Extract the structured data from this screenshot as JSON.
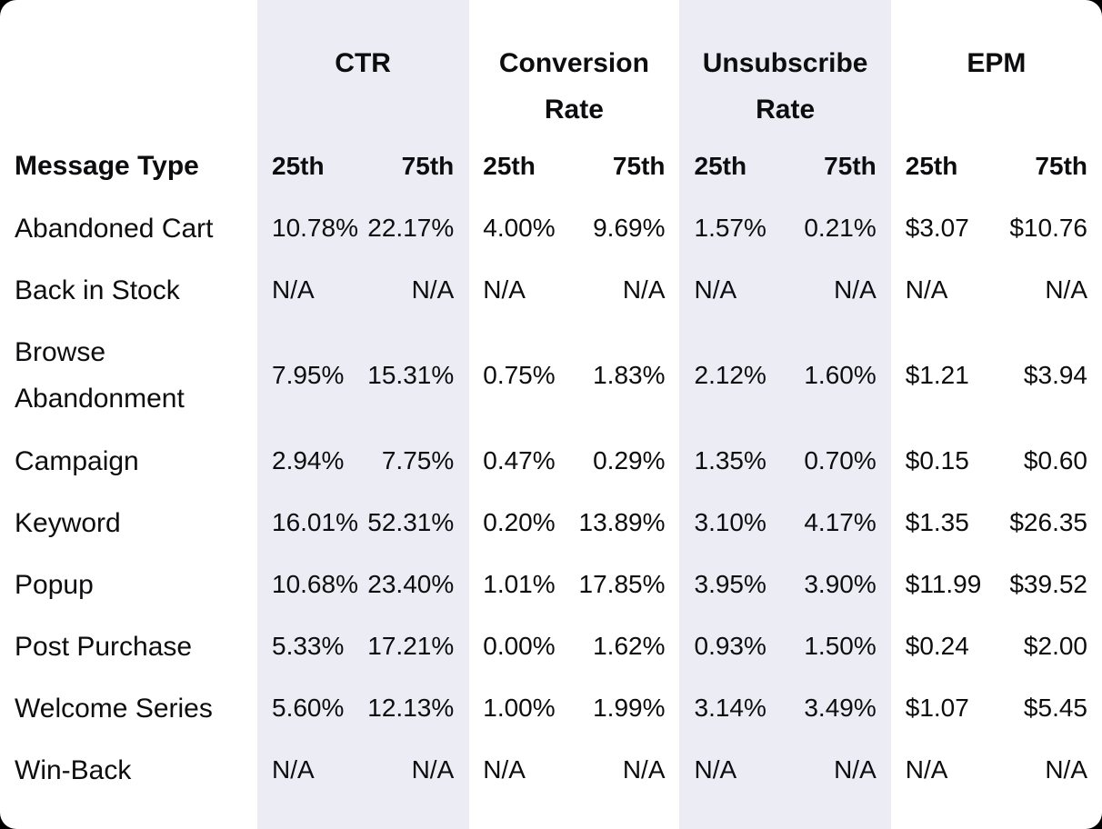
{
  "colors": {
    "outside_background": "#000000",
    "card_background": "#ffffff",
    "column_band": "#ecedf4",
    "text": "#0d0d0f"
  },
  "chart_data": {
    "type": "table",
    "row_header_label": "Message Type",
    "column_groups": [
      {
        "label": "CTR",
        "subcolumns": [
          "25th",
          "75th"
        ]
      },
      {
        "label": "Conversion Rate",
        "subcolumns": [
          "25th",
          "75th"
        ]
      },
      {
        "label": "Unsubscribe Rate",
        "subcolumns": [
          "25th",
          "75th"
        ]
      },
      {
        "label": "EPM",
        "subcolumns": [
          "25th",
          "75th"
        ]
      }
    ],
    "rows": [
      {
        "label": "Abandoned Cart",
        "values": [
          "10.78%",
          "22.17%",
          "4.00%",
          "9.69%",
          "1.57%",
          "0.21%",
          "$3.07",
          "$10.76"
        ]
      },
      {
        "label": "Back in Stock",
        "values": [
          "N/A",
          "N/A",
          "N/A",
          "N/A",
          "N/A",
          "N/A",
          "N/A",
          "N/A"
        ]
      },
      {
        "label": "Browse Abandonment",
        "values": [
          "7.95%",
          "15.31%",
          "0.75%",
          "1.83%",
          "2.12%",
          "1.60%",
          "$1.21",
          "$3.94"
        ]
      },
      {
        "label": "Campaign",
        "values": [
          "2.94%",
          "7.75%",
          "0.47%",
          "0.29%",
          "1.35%",
          "0.70%",
          "$0.15",
          "$0.60"
        ]
      },
      {
        "label": "Keyword",
        "values": [
          "16.01%",
          "52.31%",
          "0.20%",
          "13.89%",
          "3.10%",
          "4.17%",
          "$1.35",
          "$26.35"
        ]
      },
      {
        "label": "Popup",
        "values": [
          "10.68%",
          "23.40%",
          "1.01%",
          "17.85%",
          "3.95%",
          "3.90%",
          "$11.99",
          "$39.52"
        ]
      },
      {
        "label": "Post Purchase",
        "values": [
          "5.33%",
          "17.21%",
          "0.00%",
          "1.62%",
          "0.93%",
          "1.50%",
          "$0.24",
          "$2.00"
        ]
      },
      {
        "label": "Welcome Series",
        "values": [
          "5.60%",
          "12.13%",
          "1.00%",
          "1.99%",
          "3.14%",
          "3.49%",
          "$1.07",
          "$5.45"
        ]
      },
      {
        "label": "Win-Back",
        "values": [
          "N/A",
          "N/A",
          "N/A",
          "N/A",
          "N/A",
          "N/A",
          "N/A",
          "N/A"
        ]
      }
    ]
  }
}
